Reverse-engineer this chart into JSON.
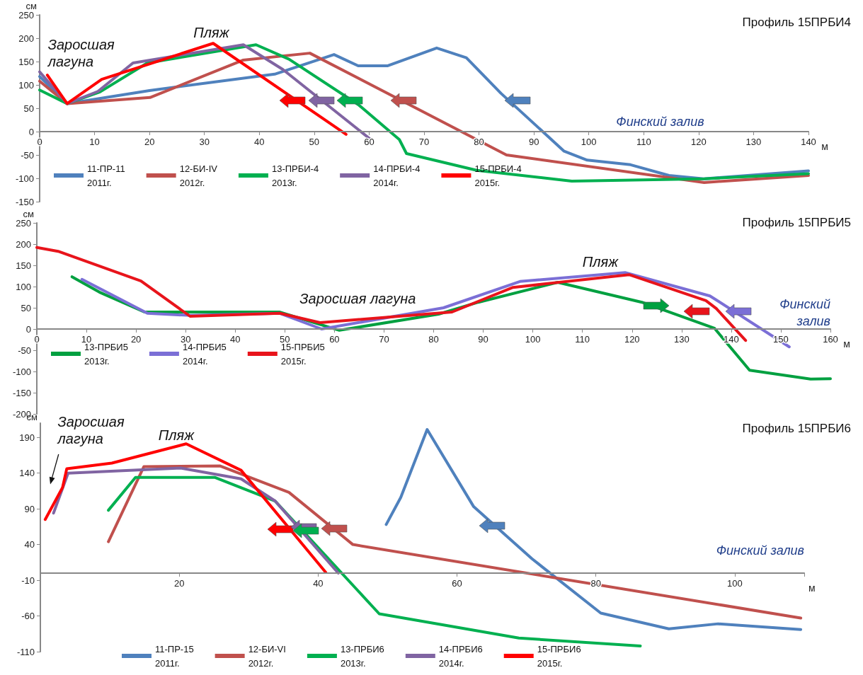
{
  "chart_data": [
    {
      "type": "line",
      "title": "Профиль 15ПРБИ4",
      "xlabel": "м",
      "ylabel": "см",
      "xlim": [
        0,
        140
      ],
      "xticks": [
        0,
        10,
        20,
        30,
        40,
        50,
        60,
        70,
        80,
        90,
        100,
        110,
        120,
        130,
        140
      ],
      "ylim": [
        -150,
        250
      ],
      "yticks": [
        -150,
        -100,
        -50,
        0,
        50,
        100,
        150,
        200,
        250
      ],
      "legend": "bottom left",
      "annotations": [
        "Заросшая лагуна",
        "Пляж",
        "Финский залив"
      ],
      "series": [
        {
          "name": "11-ПР-11\n2011г.",
          "color": "#4f81bd",
          "x": [
            0,
            5,
            20,
            42.8,
            53.6,
            58,
            63.4,
            72.3,
            77.7,
            84,
            95.5,
            99.7,
            107.6,
            114.6,
            121,
            140
          ],
          "values": [
            118,
            60,
            88,
            123,
            165,
            141,
            141,
            179,
            158,
            82,
            -42,
            -61,
            -71,
            -94,
            -101,
            -84
          ]
        },
        {
          "name": "12-БИ-IV\n2012г.",
          "color": "#c0504d",
          "x": [
            0,
            5,
            20.1,
            37,
            49.2,
            85,
            121,
            140
          ],
          "values": [
            108,
            60,
            73,
            153,
            168,
            -50,
            -109,
            -94
          ]
        },
        {
          "name": "13-ПРБИ-4\n2013г.",
          "color": "#00b050",
          "x": [
            0,
            5,
            11,
            19.6,
            39.4,
            45.4,
            58,
            65.5,
            66.8,
            79.6,
            96.9,
            121,
            140
          ],
          "values": [
            89,
            60,
            85,
            147,
            186,
            155,
            58,
            -17,
            -47,
            -83,
            -106,
            -101,
            -90
          ]
        },
        {
          "name": "14-ПРБИ-4\n2014г.",
          "color": "#8064a2",
          "x": [
            0,
            5,
            10.6,
            17,
            37.1,
            44.3,
            60.3
          ],
          "values": [
            128,
            60,
            86,
            147,
            186,
            133,
            -17
          ]
        },
        {
          "name": "15-ПРБИ-4\n2015г.",
          "color": "#ff0000",
          "x": [
            1.4,
            5,
            11.3,
            31.6,
            55.8
          ],
          "values": [
            121,
            60,
            112,
            189,
            -6
          ]
        }
      ]
    },
    {
      "type": "line",
      "title": "Профиль 15ПРБИ5",
      "xlabel": "м",
      "ylabel": "см",
      "xlim": [
        0,
        160
      ],
      "xticks": [
        0,
        10,
        20,
        30,
        40,
        50,
        60,
        70,
        80,
        90,
        100,
        110,
        120,
        130,
        140,
        150,
        160
      ],
      "ylim": [
        -200,
        250
      ],
      "yticks": [
        -200,
        -150,
        -100,
        -50,
        0,
        50,
        100,
        150,
        200,
        250
      ],
      "legend": "bottom left",
      "annotations": [
        "Заросшая лагуна",
        "Пляж",
        "Финский залив"
      ],
      "series": [
        {
          "name": "13-ПРБИ5\n2013г.",
          "color": "#00a040",
          "x": [
            7.1,
            12.6,
            21.7,
            48.9,
            61,
            81,
            89,
            105,
            122,
            136.6,
            143.7,
            156,
            160
          ],
          "values": [
            123,
            87,
            40,
            40,
            -3,
            35,
            63,
            110,
            63,
            2,
            -97,
            -118,
            -117
          ]
        },
        {
          "name": "14-ПРБИ5\n2014г.",
          "color": "#7b6fd6",
          "x": [
            9.1,
            22.3,
            31,
            49,
            57.4,
            82,
            97.4,
            118.6,
            135.7,
            151.7
          ],
          "values": [
            117,
            37,
            32,
            37,
            0,
            50,
            112,
            133,
            78,
            -42
          ]
        },
        {
          "name": "15-ПРБИ5\n2015г.",
          "color": "#e8141b",
          "x": [
            0,
            4.3,
            21,
            30.9,
            49,
            57.1,
            83.7,
            96,
            119.4,
            134.9,
            137,
            142.9
          ],
          "values": [
            192,
            183,
            113,
            30,
            37,
            15,
            40,
            98,
            128,
            67,
            48,
            -27
          ]
        }
      ]
    },
    {
      "type": "line",
      "title": "Профиль 15ПРБИ6",
      "xlabel": "м",
      "ylabel": "см",
      "xlim": [
        0,
        110
      ],
      "xticks": [
        20,
        40,
        60,
        80,
        100
      ],
      "ylim": [
        -110,
        210
      ],
      "yticks": [
        -110,
        -60,
        -10,
        40,
        90,
        140,
        190
      ],
      "legend": "bottom",
      "annotations": [
        "Заросшая лагуна",
        "Пляж",
        "Финский залив"
      ],
      "series": [
        {
          "name": "11-ПР-15\n2011г.",
          "color": "#4f81bd",
          "x": [
            49.8,
            51.9,
            55.7,
            62.4,
            70.8,
            80.7,
            90.5,
            97.6,
            109.5
          ],
          "values": [
            68,
            106,
            201,
            93,
            20,
            -56,
            -78,
            -71,
            -79
          ]
        },
        {
          "name": "12-БИ-VI\n2012г.",
          "color": "#c0504d",
          "x": [
            9.8,
            14.9,
            25.9,
            35.8,
            45,
            109.5
          ],
          "values": [
            44,
            149,
            150,
            113,
            40,
            -63
          ]
        },
        {
          "name": "13-ПРБИ6\n2013г.",
          "color": "#00b050",
          "x": [
            9.8,
            13.7,
            25.1,
            33.8,
            48.8,
            68.9,
            86.4
          ],
          "values": [
            88,
            134,
            134,
            101,
            -57,
            -91,
            -102
          ]
        },
        {
          "name": "14-ПРБИ6\n2014г.",
          "color": "#8064a2",
          "x": [
            1.9,
            4,
            20.2,
            28.9,
            33.8,
            42.9
          ],
          "values": [
            84,
            140,
            147,
            132,
            101,
            0
          ]
        },
        {
          "name": "15-ПРБИ6\n2015г.",
          "color": "#ff0000",
          "x": [
            0.7,
            3.2,
            3.8,
            10.3,
            21,
            28.9,
            41.1
          ],
          "values": [
            75,
            120,
            146,
            154,
            181,
            144,
            1
          ]
        }
      ]
    }
  ]
}
